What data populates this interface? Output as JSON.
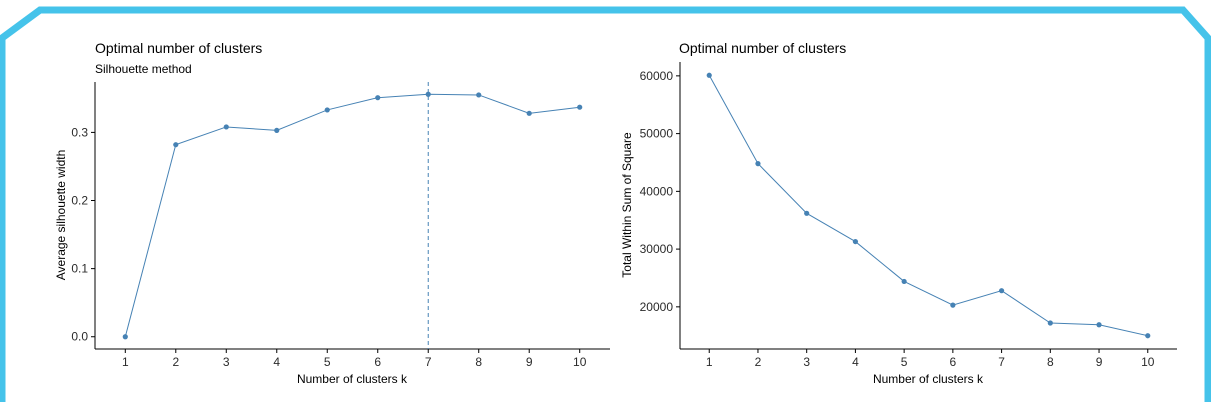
{
  "colors": {
    "frame": "#45c3ea",
    "series": "#4682b4",
    "axis": "#000000",
    "tick_text": "#2b2b2b",
    "text": "#000000"
  },
  "chart_data": [
    {
      "type": "line",
      "title": "Optimal number of clusters",
      "subtitle": "Silhouette method",
      "xlabel": "Number of clusters k",
      "ylabel": "Average silhouette width",
      "x": [
        1,
        2,
        3,
        4,
        5,
        6,
        7,
        8,
        9,
        10
      ],
      "x_tick_labels": [
        "1",
        "2",
        "3",
        "4",
        "5",
        "6",
        "7",
        "8",
        "9",
        "10"
      ],
      "series": [
        {
          "values": [
            0.0,
            0.282,
            0.308,
            0.303,
            0.333,
            0.351,
            0.356,
            0.355,
            0.328,
            0.337
          ]
        }
      ],
      "y_ticks": [
        0.0,
        0.1,
        0.2,
        0.3
      ],
      "y_tick_labels": [
        "0.0",
        "0.1",
        "0.2",
        "0.3"
      ],
      "ylim": [
        -0.018,
        0.374
      ],
      "xlim": [
        0.4,
        10.6
      ],
      "vline": {
        "x": 7,
        "style": "dashed"
      },
      "grid": false,
      "legend": "none"
    },
    {
      "type": "line",
      "title": "Optimal number of clusters",
      "subtitle": "",
      "xlabel": "Number of clusters k",
      "ylabel": "Total Within Sum of Square",
      "x": [
        1,
        2,
        3,
        4,
        5,
        6,
        7,
        8,
        9,
        10
      ],
      "x_tick_labels": [
        "1",
        "2",
        "3",
        "4",
        "5",
        "6",
        "7",
        "8",
        "9",
        "10"
      ],
      "series": [
        {
          "values": [
            60100,
            44800,
            36200,
            31300,
            24400,
            20300,
            22800,
            17200,
            16900,
            15000
          ]
        }
      ],
      "y_ticks": [
        20000,
        30000,
        40000,
        50000,
        60000
      ],
      "y_tick_labels": [
        "20000",
        "30000",
        "40000",
        "50000",
        "60000"
      ],
      "ylim": [
        12700,
        62400
      ],
      "xlim": [
        0.4,
        10.6
      ],
      "vline": null,
      "grid": false,
      "legend": "none"
    }
  ]
}
